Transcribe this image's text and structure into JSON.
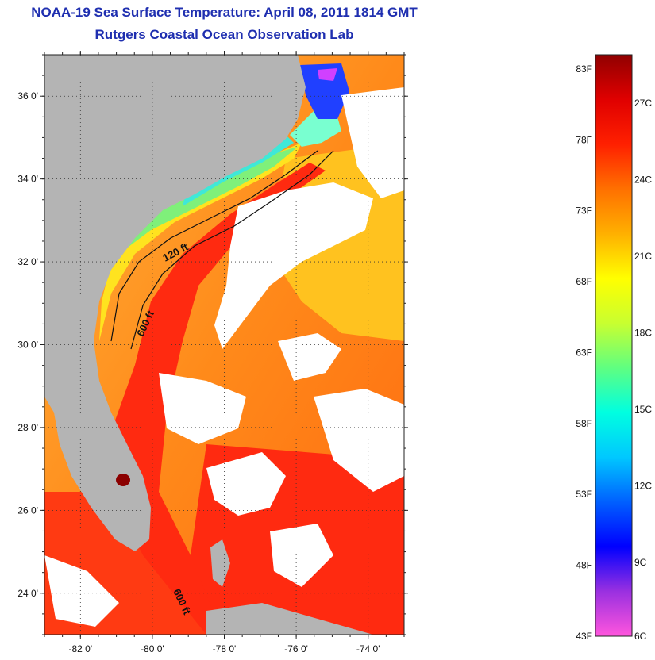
{
  "title": {
    "line1": "NOAA-19 Sea Surface Temperature:  April 08, 2011 1814 GMT",
    "line2": "Rutgers Coastal Ocean Observation Lab"
  },
  "map": {
    "lat_range": [
      23.0,
      37.0
    ],
    "lon_range": [
      -83.0,
      -73.0
    ],
    "lat_ticks": [
      {
        "value": 36,
        "label": "36 0'"
      },
      {
        "value": 34,
        "label": "34 0'"
      },
      {
        "value": 32,
        "label": "32 0'"
      },
      {
        "value": 30,
        "label": "30 0'"
      },
      {
        "value": 28,
        "label": "28 0'"
      },
      {
        "value": 26,
        "label": "26 0'"
      },
      {
        "value": 24,
        "label": "24 0'"
      }
    ],
    "lon_ticks": [
      {
        "value": -82,
        "label": "-82 0'"
      },
      {
        "value": -80,
        "label": "-80 0'"
      },
      {
        "value": -78,
        "label": "-78 0'"
      },
      {
        "value": -76,
        "label": "-76 0'"
      },
      {
        "value": -74,
        "label": "-74 0'"
      }
    ],
    "contour_labels": {
      "shelf_120": "120 ft",
      "slope_600_north": "600 ft",
      "slope_600_south": "600 ft"
    },
    "colors": {
      "land": "#b4b4b4",
      "cloud": "#ffffff",
      "gulf_stream": "#ff2a10",
      "offshore": "#ff8a1a",
      "shelf_warm": "#ffd21a",
      "shelf_cool": "#7ff07a",
      "nearshore_cold": "#3fe8d8",
      "estuary": "#2040ff"
    }
  },
  "colorbar": {
    "f_labels": [
      "83F",
      "78F",
      "73F",
      "68F",
      "63F",
      "58F",
      "53F",
      "48F",
      "43F"
    ],
    "c_labels": [
      "27C",
      "24C",
      "21C",
      "18C",
      "15C",
      "12C",
      "9C",
      "6C"
    ],
    "f_range": [
      43,
      84
    ],
    "stops": [
      "#ff55dd",
      "#9a30e0",
      "#0000ff",
      "#0060ff",
      "#00c8ff",
      "#00ffe0",
      "#60ff80",
      "#c8ff30",
      "#ffff00",
      "#ffb000",
      "#ff7000",
      "#ff2000",
      "#e00000",
      "#900000"
    ]
  }
}
